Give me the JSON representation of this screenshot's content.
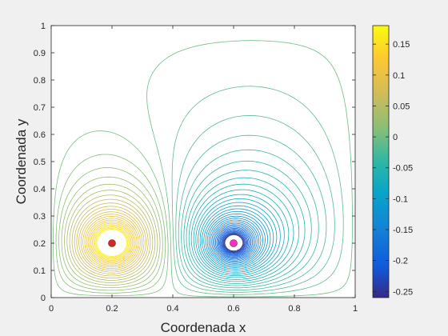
{
  "chart_data": {
    "type": "contour",
    "xlabel": "Coordenada x",
    "ylabel": "Coordenada y",
    "xlim": [
      0,
      1
    ],
    "ylim": [
      0,
      1
    ],
    "x_ticks": [
      "0",
      "0.2",
      "0.4",
      "0.6",
      "0.8",
      "1"
    ],
    "y_ticks": [
      "0",
      "0.1",
      "0.2",
      "0.3",
      "0.4",
      "0.5",
      "0.6",
      "0.7",
      "0.8",
      "0.9",
      "1"
    ],
    "colorbar": {
      "limits": [
        -0.26,
        0.18
      ],
      "ticks": [
        "0.15",
        "0.1",
        "0.05",
        "0",
        "-0.05",
        "-0.1",
        "-0.15",
        "-0.2",
        "-0.25"
      ],
      "colormap": "parula"
    },
    "sources": [
      {
        "x": 0.2,
        "y": 0.2,
        "strength": 1,
        "marker_color": "#d62728"
      },
      {
        "x": 0.6,
        "y": 0.2,
        "strength": -1,
        "marker_color": "#ff2bd1"
      }
    ],
    "grid": false
  }
}
